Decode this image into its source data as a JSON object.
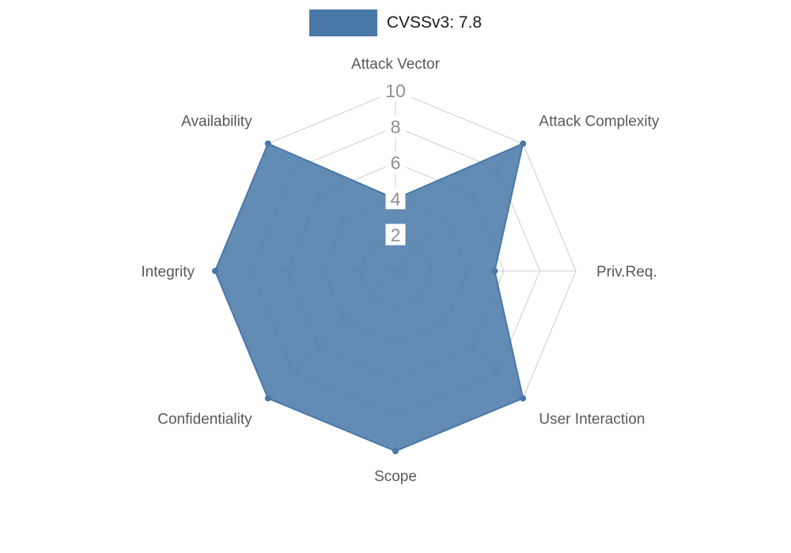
{
  "legend": {
    "label": "CVSSv3: 7.8",
    "swatch_color": "#4878a8"
  },
  "chart_data": {
    "type": "radar",
    "title": "CVSSv3: 7.8",
    "categories": [
      "Attack Vector",
      "Attack Complexity",
      "Priv.Req.",
      "User Interaction",
      "Scope",
      "Confidentiality",
      "Integrity",
      "Availability"
    ],
    "series": [
      {
        "name": "CVSSv3: 7.8",
        "values": [
          4,
          10,
          5.5,
          10,
          10,
          10,
          10,
          10
        ]
      }
    ],
    "radial_ticks": [
      2,
      4,
      6,
      8,
      10
    ],
    "max": 10,
    "grid": true,
    "legend_position": "top-center",
    "colors": {
      "fill": "#4878a8",
      "grid": "#cccccc",
      "tick_label": "#8f8f8f",
      "tick_label_bg": "#ffffff",
      "axis_label": "#595959"
    }
  }
}
